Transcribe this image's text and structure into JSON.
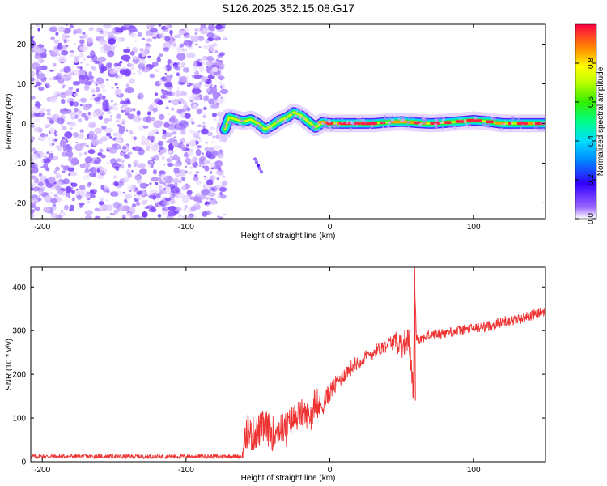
{
  "title": "S126.2025.352.15.08.G17",
  "chart_data": [
    {
      "type": "heatmap",
      "title": "S126.2025.352.15.08.G17",
      "xlabel": "Height of straight line (km)",
      "ylabel": "Frequency (Hz)",
      "xlim": [
        -208,
        150
      ],
      "ylim": [
        -24,
        25
      ],
      "x_ticks": [
        -200,
        -100,
        0,
        100
      ],
      "y_ticks": [
        -20,
        -10,
        0,
        10,
        20
      ],
      "noise_region_x": [
        -208,
        -73
      ],
      "ridge": {
        "x": [
          -73,
          -70,
          -65,
          -60,
          -55,
          -50,
          -45,
          -40,
          -35,
          -30,
          -25,
          -20,
          -15,
          -10,
          -5,
          0,
          10,
          20,
          30,
          40,
          50,
          60,
          70,
          80,
          90,
          100,
          110,
          120,
          130,
          140,
          150
        ],
        "freq": [
          -1.5,
          1.5,
          1.0,
          0.5,
          1.0,
          0.0,
          -1.5,
          -0.5,
          0.8,
          1.5,
          2.8,
          2.0,
          0.5,
          -1.0,
          0.3,
          0.0,
          0.0,
          0.0,
          0.0,
          0.3,
          0.5,
          0.2,
          0.0,
          0.2,
          0.5,
          0.8,
          0.5,
          0.0,
          0.0,
          0.0,
          0.0
        ]
      },
      "outlier_blob": {
        "x": -50,
        "freq": -10.5
      },
      "colorbar": {
        "label": "Normalized spectral amplitude",
        "range": [
          0,
          1
        ],
        "ticks": [
          0.0,
          0.2,
          0.4,
          0.6,
          0.8
        ],
        "tick_labels": [
          "0.0",
          "0.2",
          "0.4",
          "0.6",
          "0.8"
        ]
      }
    },
    {
      "type": "line",
      "xlabel": "Height of straight line (km)",
      "ylabel": "SNR (10 * v/v)",
      "xlim": [
        -208,
        150
      ],
      "ylim": [
        0,
        445
      ],
      "x_ticks": [
        -200,
        -100,
        0,
        100
      ],
      "y_ticks": [
        0,
        100,
        200,
        300,
        400
      ],
      "series": [
        {
          "name": "SNR",
          "color": "#ee3333",
          "x": [
            -208,
            -150,
            -100,
            -61,
            -59,
            -57,
            -55,
            -50,
            -45,
            -40,
            -35,
            -30,
            -25,
            -20,
            -15,
            -10,
            -5,
            0,
            5,
            10,
            15,
            20,
            25,
            30,
            35,
            40,
            45,
            50,
            55,
            58,
            59,
            60,
            62,
            65,
            70,
            80,
            90,
            100,
            110,
            120,
            130,
            140,
            150
          ],
          "values": [
            12,
            12,
            12,
            12,
            45,
            80,
            60,
            70,
            80,
            65,
            75,
            80,
            100,
            110,
            105,
            120,
            130,
            160,
            180,
            200,
            215,
            230,
            240,
            250,
            260,
            270,
            275,
            270,
            280,
            160,
            420,
            290,
            280,
            285,
            290,
            295,
            300,
            305,
            310,
            320,
            325,
            335,
            345
          ],
          "noise_amplitude": [
            5,
            5,
            5,
            5,
            35,
            40,
            40,
            40,
            40,
            40,
            35,
            35,
            35,
            35,
            30,
            30,
            25,
            22,
            20,
            18,
            18,
            18,
            16,
            16,
            16,
            16,
            20,
            35,
            25,
            30,
            20,
            14,
            12,
            12,
            12,
            12,
            12,
            12,
            12,
            12,
            12,
            12,
            12
          ]
        }
      ]
    }
  ]
}
